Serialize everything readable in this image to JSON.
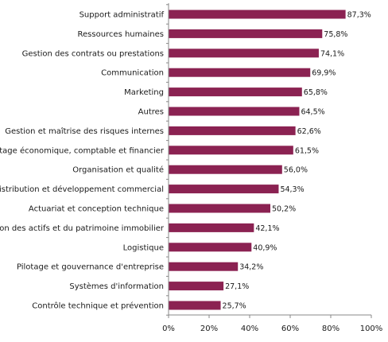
{
  "chart_data": {
    "type": "bar",
    "orientation": "horizontal",
    "categories": [
      "Support administratif",
      "Ressources humaines",
      "Gestion des contrats ou prestations",
      "Communication",
      "Marketing",
      "Autres",
      "Gestion et maîtrise des risques internes",
      "Pilotage économique, comptable et financier",
      "Organisation et qualité",
      "Distribution et développement commercial",
      "Actuariat et conception technique",
      "Gestion des actifs et du patrimoine immobilier",
      "Logistique",
      "Pilotage et gouvernance d'entreprise",
      "Systèmes d'information",
      "Contrôle technique et prévention"
    ],
    "values": [
      87.3,
      75.8,
      74.1,
      69.9,
      65.8,
      64.5,
      62.6,
      61.5,
      56.0,
      54.3,
      50.2,
      42.1,
      40.9,
      34.2,
      27.1,
      25.7
    ],
    "value_labels": [
      "87,3%",
      "75,8%",
      "74,1%",
      "69,9%",
      "65,8%",
      "64,5%",
      "62,6%",
      "61,5%",
      "56,0%",
      "54,3%",
      "50,2%",
      "42,1%",
      "40,9%",
      "34,2%",
      "27,1%",
      "25,7%"
    ],
    "xlim": [
      0,
      100
    ],
    "x_ticks": [
      "0%",
      "20%",
      "40%",
      "60%",
      "80%",
      "100%"
    ],
    "bar_color": "#8B2252",
    "grid": false,
    "legend": "none"
  }
}
